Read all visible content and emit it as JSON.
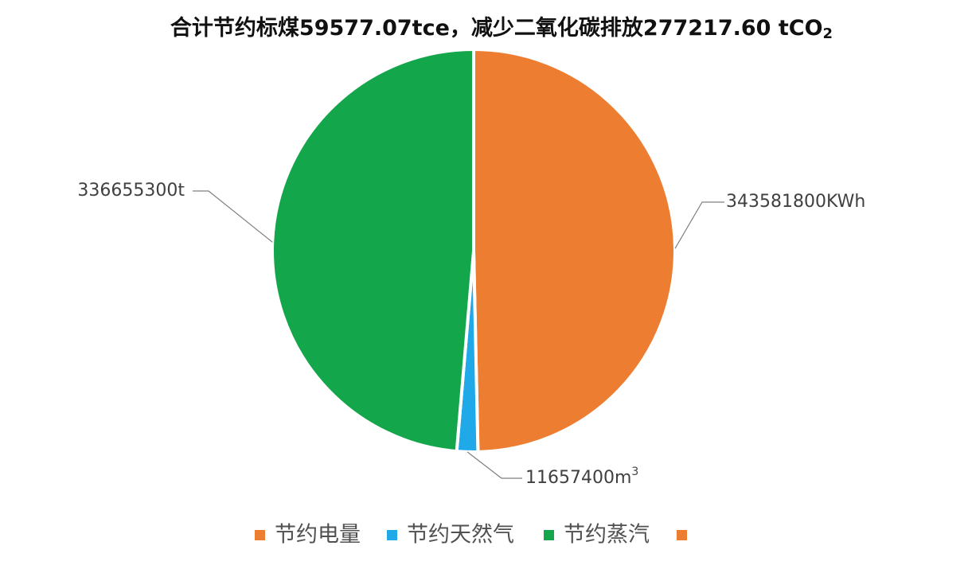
{
  "chart_data": {
    "type": "pie",
    "title": "合计节约标煤59577.07tce，减少二氧化碳排放277217.60 tCO",
    "title_sub": "2",
    "legend_position": "bottom",
    "slices": [
      {
        "name": "节约电量",
        "value": 343581800,
        "label": "343581800KWh",
        "label_unit_sup": "",
        "color": "#ED7D31"
      },
      {
        "name": "节约天然气",
        "value": 11657400,
        "label": "11657400m",
        "label_unit_sup": "3",
        "color": "#1FA9E8"
      },
      {
        "name": "节约蒸汽",
        "value": 336655300,
        "label": "336655300t",
        "label_unit_sup": "",
        "color": "#14A64A"
      }
    ],
    "legend": [
      {
        "name": "节约电量",
        "color": "#ED7D31"
      },
      {
        "name": "节约天然气",
        "color": "#1FA9E8"
      },
      {
        "name": "节约蒸汽",
        "color": "#14A64A"
      },
      {
        "name": "",
        "color": "#ED7D31"
      }
    ]
  }
}
